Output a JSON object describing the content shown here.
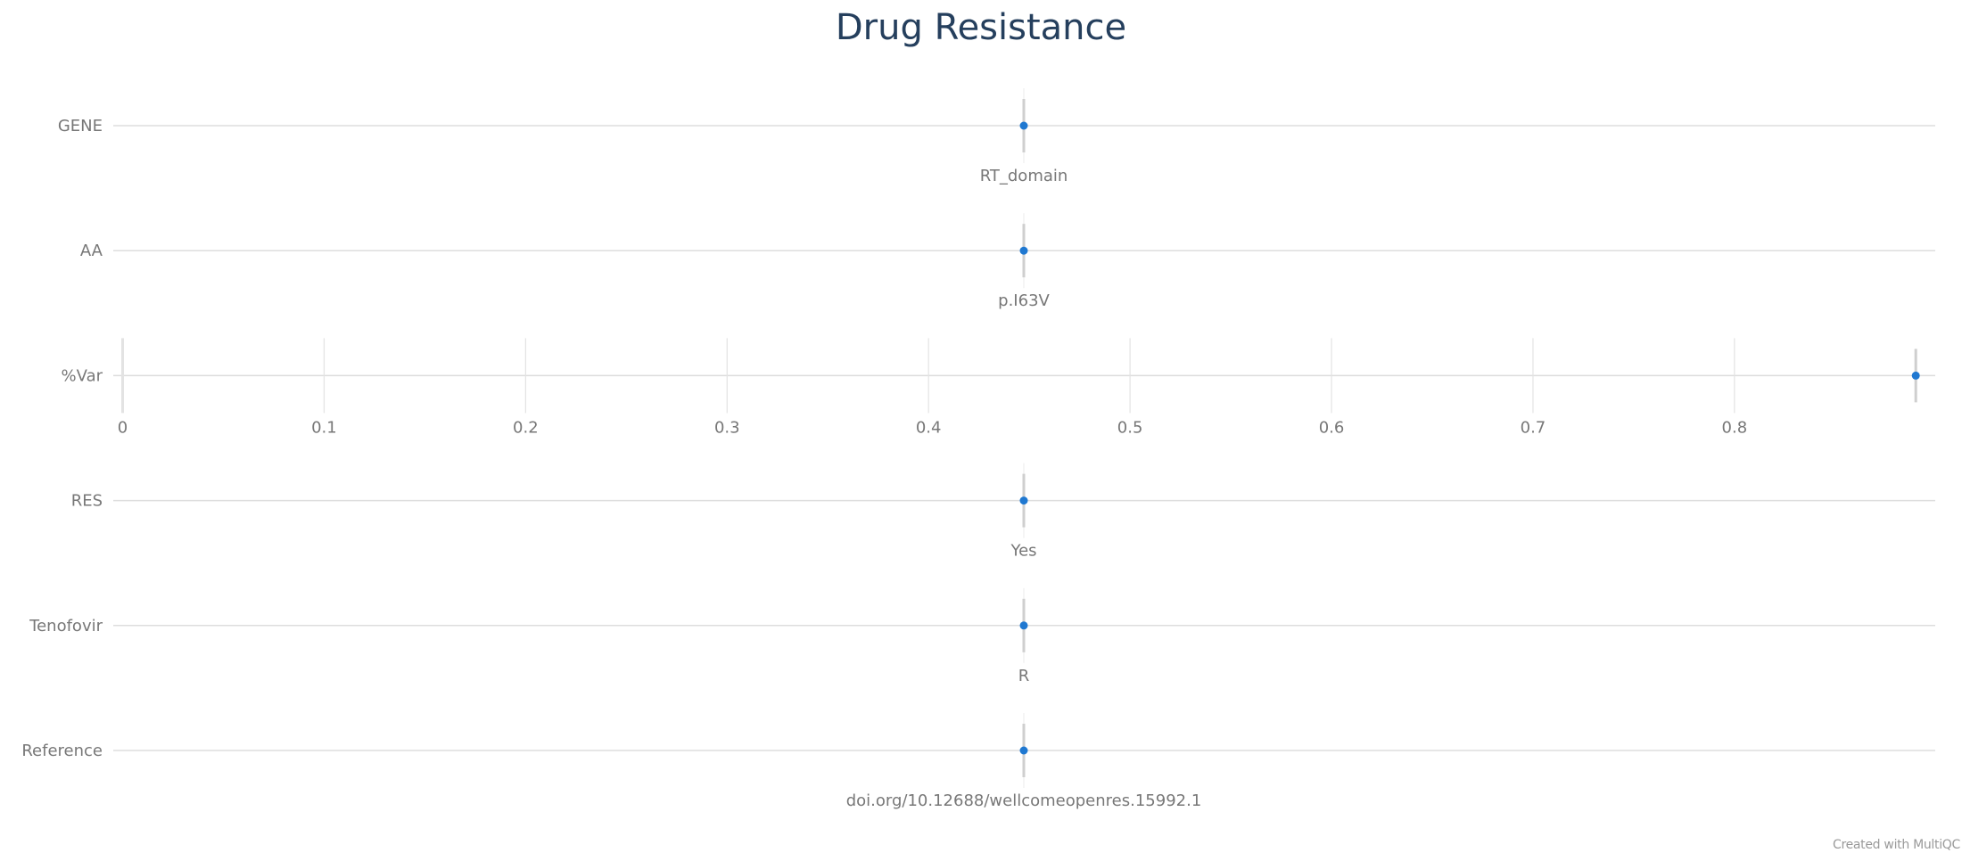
{
  "chart_data": {
    "type": "scatter",
    "title": "Drug Resistance",
    "rows": [
      {
        "label": "GENE",
        "kind": "categorical",
        "value": "RT_domain"
      },
      {
        "label": "AA",
        "kind": "categorical",
        "value": "p.I63V"
      },
      {
        "label": "%Var",
        "kind": "numeric",
        "value": 0.89,
        "xlim": [
          0,
          0.895
        ],
        "ticks": [
          0,
          0.1,
          0.2,
          0.3,
          0.4,
          0.5,
          0.6,
          0.7,
          0.8
        ]
      },
      {
        "label": "RES",
        "kind": "categorical",
        "value": "Yes"
      },
      {
        "label": "Tenofovir",
        "kind": "categorical",
        "value": "R"
      },
      {
        "label": "Reference",
        "kind": "categorical",
        "value": "doi.org/10.12688/wellcomeopenres.15992.1"
      }
    ],
    "colors": {
      "point": "#1f78d1",
      "title": "#253f5d",
      "axis_line": "#dddddd",
      "text": "#777777"
    }
  },
  "footer": {
    "credit": "Created with MultiQC"
  }
}
